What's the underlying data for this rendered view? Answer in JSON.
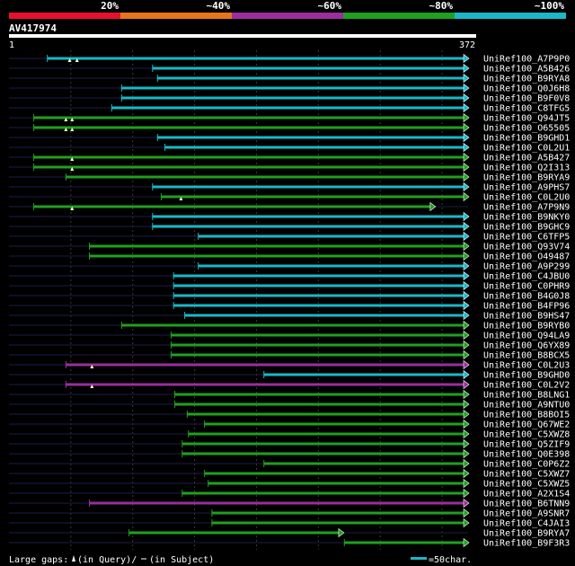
{
  "legend": {
    "segments": [
      {
        "label": "20%",
        "color": "#e8112d"
      },
      {
        "label": "~40%",
        "color": "#e8751a"
      },
      {
        "label": "~60%",
        "color": "#9b2d9e"
      },
      {
        "label": "~80%",
        "color": "#1fa01f"
      },
      {
        "label": "~100%",
        "color": "#19b8c8"
      }
    ]
  },
  "query": {
    "id": "AV417974",
    "start": "1",
    "end": "372"
  },
  "colors": {
    "cyan": "#19b8c8",
    "green": "#1fa01f",
    "purple": "#9b2d9e",
    "navy": "#1c1c4a"
  },
  "hits": [
    {
      "label": "UniRef100_A7P9P0",
      "start": 32,
      "end": 372,
      "color": "cyan",
      "gaps": [
        50,
        56
      ]
    },
    {
      "label": "UniRef100_A5B426",
      "start": 117,
      "end": 372,
      "color": "cyan"
    },
    {
      "label": "UniRef100_B9RYA8",
      "start": 121,
      "end": 372,
      "color": "cyan"
    },
    {
      "label": "UniRef100_Q0J6H8",
      "start": 92,
      "end": 372,
      "color": "cyan"
    },
    {
      "label": "UniRef100_B9F0V8",
      "start": 92,
      "end": 372,
      "color": "cyan"
    },
    {
      "label": "UniRef100_C8TFG5",
      "start": 84,
      "end": 372,
      "color": "cyan"
    },
    {
      "label": "UniRef100_Q94JT5",
      "start": 21,
      "end": 372,
      "color": "green",
      "gaps": [
        47,
        52
      ]
    },
    {
      "label": "UniRef100_O65505",
      "start": 21,
      "end": 372,
      "color": "green",
      "gaps": [
        47,
        52
      ]
    },
    {
      "label": "UniRef100_B9GHD1",
      "start": 121,
      "end": 372,
      "color": "cyan"
    },
    {
      "label": "UniRef100_C0L2U1",
      "start": 127,
      "end": 372,
      "color": "cyan"
    },
    {
      "label": "UniRef100_A5B427",
      "start": 21,
      "end": 372,
      "color": "green",
      "gaps": [
        52
      ]
    },
    {
      "label": "UniRef100_Q2I313",
      "start": 21,
      "end": 372,
      "color": "green",
      "gaps": [
        52
      ]
    },
    {
      "label": "UniRef100_B9RYA9",
      "start": 47,
      "end": 372,
      "color": "green"
    },
    {
      "label": "UniRef100_A9PHS7",
      "start": 117,
      "end": 372,
      "color": "cyan"
    },
    {
      "label": "UniRef100_C0L2U0",
      "start": 124,
      "end": 372,
      "color": "green",
      "gaps": [
        140
      ]
    },
    {
      "label": "UniRef100_A7P9N9",
      "start": 21,
      "end": 345,
      "color": "green",
      "gaps": [
        52
      ]
    },
    {
      "label": "UniRef100_B9NKY0",
      "start": 117,
      "end": 372,
      "color": "cyan"
    },
    {
      "label": "UniRef100_B9GHC9",
      "start": 117,
      "end": 372,
      "color": "cyan"
    },
    {
      "label": "UniRef100_C6TFP5",
      "start": 154,
      "end": 372,
      "color": "cyan"
    },
    {
      "label": "UniRef100_Q93V74",
      "start": 66,
      "end": 372,
      "color": "green"
    },
    {
      "label": "UniRef100_O49487",
      "start": 66,
      "end": 372,
      "color": "green"
    },
    {
      "label": "UniRef100_A9P299",
      "start": 154,
      "end": 372,
      "color": "cyan"
    },
    {
      "label": "UniRef100_C4JBU0",
      "start": 134,
      "end": 372,
      "color": "cyan"
    },
    {
      "label": "UniRef100_C0PHR9",
      "start": 134,
      "end": 372,
      "color": "cyan"
    },
    {
      "label": "UniRef100_B4G0J8",
      "start": 134,
      "end": 372,
      "color": "cyan"
    },
    {
      "label": "UniRef100_B4FP96",
      "start": 134,
      "end": 372,
      "color": "cyan"
    },
    {
      "label": "UniRef100_B9HS47",
      "start": 143,
      "end": 372,
      "color": "cyan"
    },
    {
      "label": "UniRef100_B9RYB0",
      "start": 92,
      "end": 372,
      "color": "green"
    },
    {
      "label": "UniRef100_Q94LA9",
      "start": 132,
      "end": 372,
      "color": "green"
    },
    {
      "label": "UniRef100_Q6YX89",
      "start": 132,
      "end": 372,
      "color": "green"
    },
    {
      "label": "UniRef100_B8BCX5",
      "start": 132,
      "end": 372,
      "color": "green"
    },
    {
      "label": "UniRef100_C0L2U3",
      "start": 47,
      "end": 372,
      "color": "purple",
      "gaps": [
        68
      ]
    },
    {
      "label": "UniRef100_B9GHD0",
      "start": 207,
      "end": 372,
      "color": "cyan"
    },
    {
      "label": "UniRef100_C0L2V2",
      "start": 47,
      "end": 372,
      "color": "purple",
      "gaps": [
        68
      ]
    },
    {
      "label": "UniRef100_B8LNG1",
      "start": 135,
      "end": 372,
      "color": "green"
    },
    {
      "label": "UniRef100_A9NTU0",
      "start": 135,
      "end": 372,
      "color": "green"
    },
    {
      "label": "UniRef100_B8BOI5",
      "start": 145,
      "end": 372,
      "color": "green"
    },
    {
      "label": "UniRef100_Q67WE2",
      "start": 159,
      "end": 372,
      "color": "green"
    },
    {
      "label": "UniRef100_C5XWZ8",
      "start": 146,
      "end": 372,
      "color": "green"
    },
    {
      "label": "UniRef100_Q5ZIF9",
      "start": 141,
      "end": 372,
      "color": "green"
    },
    {
      "label": "UniRef100_Q0E398",
      "start": 141,
      "end": 372,
      "color": "green"
    },
    {
      "label": "UniRef100_C0P6Z2",
      "start": 207,
      "end": 372,
      "color": "green"
    },
    {
      "label": "UniRef100_C5XWZ7",
      "start": 159,
      "end": 372,
      "color": "green"
    },
    {
      "label": "UniRef100_C5XWZ5",
      "start": 162,
      "end": 372,
      "color": "green"
    },
    {
      "label": "UniRef100_A2X1S4",
      "start": 141,
      "end": 372,
      "color": "green"
    },
    {
      "label": "UniRef100_B6TNN9",
      "start": 66,
      "end": 372,
      "color": "purple"
    },
    {
      "label": "UniRef100_A9SNR7",
      "start": 165,
      "end": 372,
      "color": "green"
    },
    {
      "label": "UniRef100_C4JAI3",
      "start": 165,
      "end": 372,
      "color": "green"
    },
    {
      "label": "UniRef100_B9RYA7",
      "start": 98,
      "end": 271,
      "color": "green"
    },
    {
      "label": "UniRef100_B9F3R3",
      "start": 272,
      "end": 372,
      "color": "green"
    }
  ],
  "footer": {
    "gaps_label": "Large gaps:",
    "in_query": "(in Query)/",
    "in_subject": "(in Subject)",
    "scale_label": "=50char."
  }
}
